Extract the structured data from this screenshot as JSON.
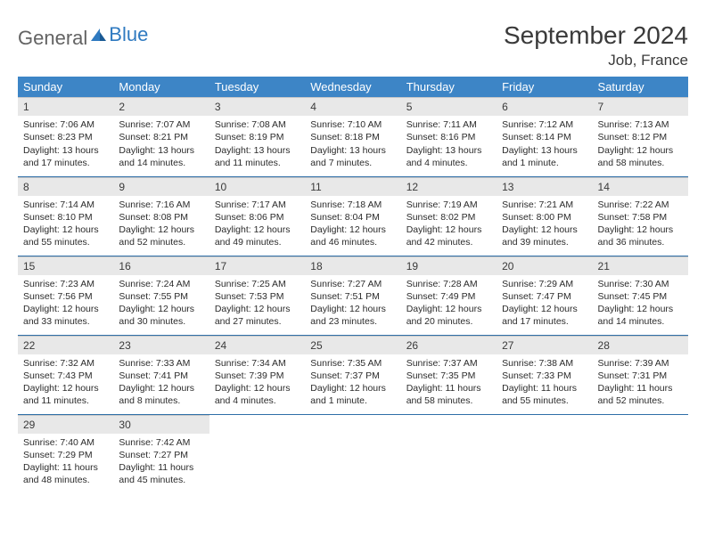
{
  "logo": {
    "text1": "General",
    "text2": "Blue"
  },
  "title": "September 2024",
  "location": "Job, France",
  "colors": {
    "header_bg": "#3d85c6",
    "header_fg": "#ffffff",
    "daynum_bg": "#e8e8e8",
    "border": "#2f6fa8",
    "logo_blue": "#2f7ac0",
    "logo_gray": "#636363"
  },
  "weekdays": [
    "Sunday",
    "Monday",
    "Tuesday",
    "Wednesday",
    "Thursday",
    "Friday",
    "Saturday"
  ],
  "weeks": [
    [
      {
        "n": "1",
        "sr": "7:06 AM",
        "ss": "8:23 PM",
        "dl": "13 hours and 17 minutes."
      },
      {
        "n": "2",
        "sr": "7:07 AM",
        "ss": "8:21 PM",
        "dl": "13 hours and 14 minutes."
      },
      {
        "n": "3",
        "sr": "7:08 AM",
        "ss": "8:19 PM",
        "dl": "13 hours and 11 minutes."
      },
      {
        "n": "4",
        "sr": "7:10 AM",
        "ss": "8:18 PM",
        "dl": "13 hours and 7 minutes."
      },
      {
        "n": "5",
        "sr": "7:11 AM",
        "ss": "8:16 PM",
        "dl": "13 hours and 4 minutes."
      },
      {
        "n": "6",
        "sr": "7:12 AM",
        "ss": "8:14 PM",
        "dl": "13 hours and 1 minute."
      },
      {
        "n": "7",
        "sr": "7:13 AM",
        "ss": "8:12 PM",
        "dl": "12 hours and 58 minutes."
      }
    ],
    [
      {
        "n": "8",
        "sr": "7:14 AM",
        "ss": "8:10 PM",
        "dl": "12 hours and 55 minutes."
      },
      {
        "n": "9",
        "sr": "7:16 AM",
        "ss": "8:08 PM",
        "dl": "12 hours and 52 minutes."
      },
      {
        "n": "10",
        "sr": "7:17 AM",
        "ss": "8:06 PM",
        "dl": "12 hours and 49 minutes."
      },
      {
        "n": "11",
        "sr": "7:18 AM",
        "ss": "8:04 PM",
        "dl": "12 hours and 46 minutes."
      },
      {
        "n": "12",
        "sr": "7:19 AM",
        "ss": "8:02 PM",
        "dl": "12 hours and 42 minutes."
      },
      {
        "n": "13",
        "sr": "7:21 AM",
        "ss": "8:00 PM",
        "dl": "12 hours and 39 minutes."
      },
      {
        "n": "14",
        "sr": "7:22 AM",
        "ss": "7:58 PM",
        "dl": "12 hours and 36 minutes."
      }
    ],
    [
      {
        "n": "15",
        "sr": "7:23 AM",
        "ss": "7:56 PM",
        "dl": "12 hours and 33 minutes."
      },
      {
        "n": "16",
        "sr": "7:24 AM",
        "ss": "7:55 PM",
        "dl": "12 hours and 30 minutes."
      },
      {
        "n": "17",
        "sr": "7:25 AM",
        "ss": "7:53 PM",
        "dl": "12 hours and 27 minutes."
      },
      {
        "n": "18",
        "sr": "7:27 AM",
        "ss": "7:51 PM",
        "dl": "12 hours and 23 minutes."
      },
      {
        "n": "19",
        "sr": "7:28 AM",
        "ss": "7:49 PM",
        "dl": "12 hours and 20 minutes."
      },
      {
        "n": "20",
        "sr": "7:29 AM",
        "ss": "7:47 PM",
        "dl": "12 hours and 17 minutes."
      },
      {
        "n": "21",
        "sr": "7:30 AM",
        "ss": "7:45 PM",
        "dl": "12 hours and 14 minutes."
      }
    ],
    [
      {
        "n": "22",
        "sr": "7:32 AM",
        "ss": "7:43 PM",
        "dl": "12 hours and 11 minutes."
      },
      {
        "n": "23",
        "sr": "7:33 AM",
        "ss": "7:41 PM",
        "dl": "12 hours and 8 minutes."
      },
      {
        "n": "24",
        "sr": "7:34 AM",
        "ss": "7:39 PM",
        "dl": "12 hours and 4 minutes."
      },
      {
        "n": "25",
        "sr": "7:35 AM",
        "ss": "7:37 PM",
        "dl": "12 hours and 1 minute."
      },
      {
        "n": "26",
        "sr": "7:37 AM",
        "ss": "7:35 PM",
        "dl": "11 hours and 58 minutes."
      },
      {
        "n": "27",
        "sr": "7:38 AM",
        "ss": "7:33 PM",
        "dl": "11 hours and 55 minutes."
      },
      {
        "n": "28",
        "sr": "7:39 AM",
        "ss": "7:31 PM",
        "dl": "11 hours and 52 minutes."
      }
    ],
    [
      {
        "n": "29",
        "sr": "7:40 AM",
        "ss": "7:29 PM",
        "dl": "11 hours and 48 minutes."
      },
      {
        "n": "30",
        "sr": "7:42 AM",
        "ss": "7:27 PM",
        "dl": "11 hours and 45 minutes."
      },
      null,
      null,
      null,
      null,
      null
    ]
  ],
  "labels": {
    "sunrise": "Sunrise:",
    "sunset": "Sunset:",
    "daylight": "Daylight:"
  }
}
